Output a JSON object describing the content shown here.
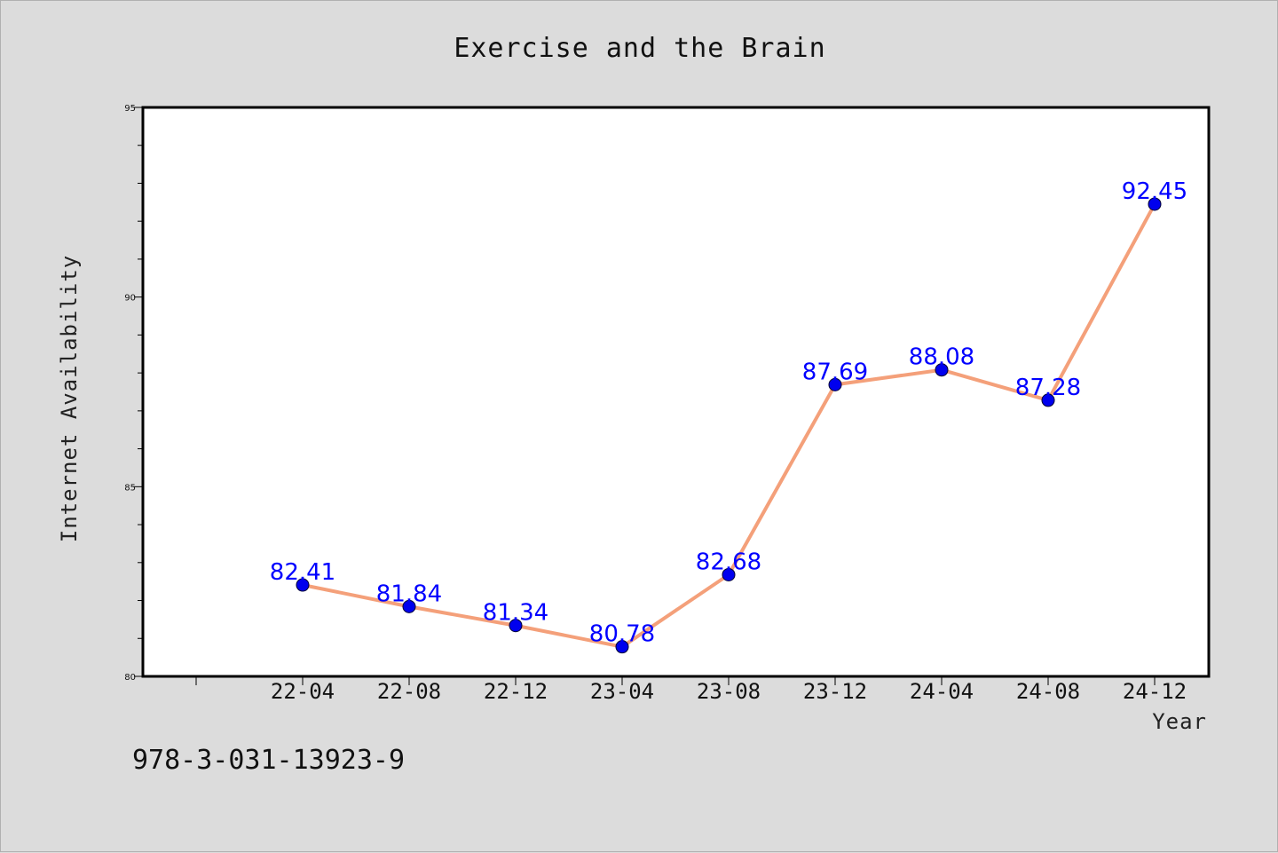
{
  "chart_data": {
    "type": "line",
    "title": "Exercise and the Brain",
    "xlabel": "Year",
    "ylabel": "Internet Availability",
    "categories": [
      "22-04",
      "22-08",
      "22-12",
      "23-04",
      "23-08",
      "23-12",
      "24-04",
      "24-08",
      "24-12"
    ],
    "series": [
      {
        "values": [
          82.41,
          81.84,
          81.34,
          80.78,
          82.68,
          87.69,
          88.08,
          87.28,
          92.45
        ],
        "labels": [
          "82.41",
          "81.84",
          "81.34",
          "80.78",
          "82.68",
          "87.69",
          "88.08",
          "87.28",
          "92.45"
        ],
        "line_color": "#f4a07a",
        "marker_color": "#0000ee"
      }
    ],
    "ylim": [
      80,
      95
    ],
    "yticks": [
      "80",
      "85",
      "90",
      "95"
    ],
    "grid": false,
    "legend": "none"
  },
  "footer": {
    "isbn": "978-3-031-13923-9"
  },
  "colors": {
    "background": "#dcdcdc",
    "plot_background": "#ffffff",
    "data_label": "#0000ff"
  }
}
